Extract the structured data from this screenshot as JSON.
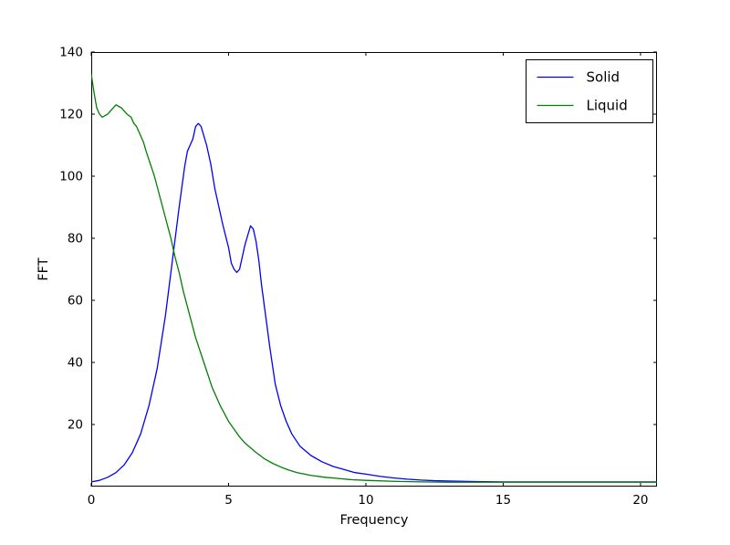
{
  "figure": {
    "background": "#ffffff",
    "frame_color": "#000000"
  },
  "chart_data": {
    "type": "line",
    "title": "",
    "xlabel": "Frequency",
    "ylabel": "FFT",
    "xlim": [
      0,
      20.6
    ],
    "ylim": [
      0,
      140
    ],
    "xticks": [
      0,
      5,
      10,
      15,
      20
    ],
    "yticks": [
      20,
      40,
      60,
      80,
      100,
      120,
      140
    ],
    "grid": false,
    "legend_position": "upper right",
    "series": [
      {
        "name": "Solid",
        "color": "#0000ff",
        "points": [
          [
            0,
            1.5
          ],
          [
            0.3,
            2
          ],
          [
            0.6,
            3
          ],
          [
            0.9,
            4.5
          ],
          [
            1.2,
            7
          ],
          [
            1.5,
            11
          ],
          [
            1.8,
            17
          ],
          [
            2.1,
            26
          ],
          [
            2.4,
            38
          ],
          [
            2.7,
            55
          ],
          [
            3.0,
            76
          ],
          [
            3.2,
            90
          ],
          [
            3.4,
            103
          ],
          [
            3.5,
            108
          ],
          [
            3.6,
            110
          ],
          [
            3.7,
            112
          ],
          [
            3.8,
            116
          ],
          [
            3.9,
            117
          ],
          [
            4.0,
            116
          ],
          [
            4.1,
            113
          ],
          [
            4.2,
            110
          ],
          [
            4.35,
            104
          ],
          [
            4.5,
            96
          ],
          [
            4.65,
            90
          ],
          [
            4.8,
            84
          ],
          [
            5.0,
            77
          ],
          [
            5.1,
            72
          ],
          [
            5.2,
            70
          ],
          [
            5.3,
            69
          ],
          [
            5.4,
            70
          ],
          [
            5.5,
            74
          ],
          [
            5.6,
            78
          ],
          [
            5.7,
            81
          ],
          [
            5.8,
            84
          ],
          [
            5.9,
            83
          ],
          [
            6.0,
            79
          ],
          [
            6.1,
            73
          ],
          [
            6.2,
            65
          ],
          [
            6.35,
            55
          ],
          [
            6.5,
            45
          ],
          [
            6.7,
            33
          ],
          [
            6.9,
            26
          ],
          [
            7.1,
            21
          ],
          [
            7.3,
            17
          ],
          [
            7.6,
            13
          ],
          [
            8.0,
            10
          ],
          [
            8.4,
            8
          ],
          [
            8.8,
            6.5
          ],
          [
            9.2,
            5.5
          ],
          [
            9.6,
            4.5
          ],
          [
            10,
            4
          ],
          [
            10.5,
            3.3
          ],
          [
            11,
            2.8
          ],
          [
            11.5,
            2.4
          ],
          [
            12,
            2.1
          ],
          [
            12.5,
            1.9
          ],
          [
            13,
            1.8
          ],
          [
            14,
            1.6
          ],
          [
            15,
            1.5
          ],
          [
            16,
            1.5
          ],
          [
            17,
            1.5
          ],
          [
            18,
            1.5
          ],
          [
            19,
            1.5
          ],
          [
            20,
            1.5
          ],
          [
            20.6,
            1.5
          ]
        ]
      },
      {
        "name": "Liquid",
        "color": "#007f00",
        "points": [
          [
            0,
            133
          ],
          [
            0.1,
            127
          ],
          [
            0.2,
            122
          ],
          [
            0.3,
            120
          ],
          [
            0.4,
            119
          ],
          [
            0.5,
            119.5
          ],
          [
            0.6,
            120
          ],
          [
            0.7,
            121
          ],
          [
            0.8,
            122
          ],
          [
            0.9,
            123
          ],
          [
            1.0,
            122.5
          ],
          [
            1.1,
            122
          ],
          [
            1.2,
            121
          ],
          [
            1.3,
            120
          ],
          [
            1.45,
            119
          ],
          [
            1.55,
            117
          ],
          [
            1.65,
            116
          ],
          [
            1.75,
            114
          ],
          [
            1.9,
            111
          ],
          [
            2.0,
            108
          ],
          [
            2.15,
            104
          ],
          [
            2.3,
            100
          ],
          [
            2.45,
            95
          ],
          [
            2.6,
            90
          ],
          [
            2.75,
            85
          ],
          [
            2.9,
            80
          ],
          [
            3.05,
            74
          ],
          [
            3.2,
            69
          ],
          [
            3.35,
            63
          ],
          [
            3.5,
            58
          ],
          [
            3.65,
            53
          ],
          [
            3.8,
            48
          ],
          [
            3.95,
            44
          ],
          [
            4.1,
            40
          ],
          [
            4.25,
            36
          ],
          [
            4.4,
            32
          ],
          [
            4.55,
            29
          ],
          [
            4.7,
            26
          ],
          [
            4.85,
            23.5
          ],
          [
            5.0,
            21
          ],
          [
            5.2,
            18.5
          ],
          [
            5.4,
            16
          ],
          [
            5.6,
            14
          ],
          [
            5.8,
            12.5
          ],
          [
            6.0,
            11
          ],
          [
            6.3,
            9
          ],
          [
            6.6,
            7.5
          ],
          [
            6.9,
            6.3
          ],
          [
            7.2,
            5.3
          ],
          [
            7.5,
            4.5
          ],
          [
            8.0,
            3.6
          ],
          [
            8.5,
            3
          ],
          [
            9.0,
            2.6
          ],
          [
            9.5,
            2.2
          ],
          [
            10,
            2
          ],
          [
            11,
            1.7
          ],
          [
            12,
            1.5
          ],
          [
            13,
            1.4
          ],
          [
            14,
            1.4
          ],
          [
            15,
            1.4
          ],
          [
            16,
            1.4
          ],
          [
            17,
            1.4
          ],
          [
            18,
            1.4
          ],
          [
            19,
            1.4
          ],
          [
            20,
            1.4
          ],
          [
            20.6,
            1.4
          ]
        ]
      }
    ]
  }
}
